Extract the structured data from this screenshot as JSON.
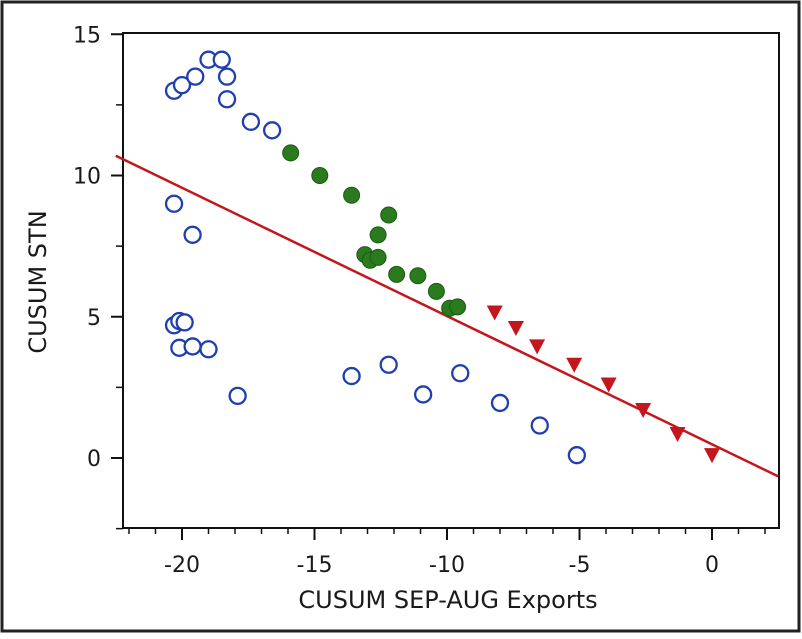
{
  "chart_data": {
    "type": "scatter",
    "title": "",
    "xlabel": "CUSUM SEP-AUG Exports",
    "ylabel": "CUSUM STN",
    "xlim": [
      -22.5,
      2.5
    ],
    "ylim": [
      -2.5,
      15
    ],
    "x_ticks": [
      -20,
      -15,
      -10,
      -5,
      0
    ],
    "y_ticks": [
      0,
      5,
      10,
      15
    ],
    "x_tick_labels": [
      "-20",
      "-15",
      "-10",
      "-5",
      "0"
    ],
    "y_tick_labels": [
      "0",
      "5",
      "10",
      "15"
    ],
    "grid": false,
    "legend": "none",
    "colors": {
      "open_circle": "#1f3fb0",
      "filled_circle": "#2a7a1e",
      "triangle": "#c4161c",
      "fit_line": "#c4161c"
    },
    "series": [
      {
        "marker": "open-circle",
        "points": [
          [
            -20.3,
            13.0
          ],
          [
            -20.0,
            13.2
          ],
          [
            -19.5,
            13.5
          ],
          [
            -19.0,
            14.1
          ],
          [
            -18.5,
            14.1
          ],
          [
            -18.3,
            13.5
          ],
          [
            -18.3,
            12.7
          ],
          [
            -17.4,
            11.9
          ],
          [
            -16.6,
            11.6
          ],
          [
            -20.3,
            9.0
          ],
          [
            -19.6,
            7.9
          ],
          [
            -20.3,
            4.7
          ],
          [
            -20.1,
            4.85
          ],
          [
            -19.9,
            4.8
          ],
          [
            -20.1,
            3.9
          ],
          [
            -19.6,
            3.95
          ],
          [
            -19.0,
            3.85
          ],
          [
            -17.9,
            2.2
          ],
          [
            -13.6,
            2.9
          ],
          [
            -12.2,
            3.3
          ],
          [
            -10.9,
            2.25
          ],
          [
            -9.5,
            3.0
          ],
          [
            -8.0,
            1.95
          ],
          [
            -6.5,
            1.15
          ],
          [
            -5.1,
            0.1
          ]
        ]
      },
      {
        "marker": "filled-circle",
        "points": [
          [
            -15.9,
            10.8
          ],
          [
            -14.8,
            10.0
          ],
          [
            -13.6,
            9.3
          ],
          [
            -12.2,
            8.6
          ],
          [
            -12.6,
            7.9
          ],
          [
            -13.1,
            7.2
          ],
          [
            -12.9,
            7.0
          ],
          [
            -12.6,
            7.1
          ],
          [
            -11.9,
            6.5
          ],
          [
            -11.1,
            6.45
          ],
          [
            -10.4,
            5.9
          ],
          [
            -9.9,
            5.3
          ],
          [
            -9.6,
            5.35
          ]
        ]
      },
      {
        "marker": "triangle",
        "points": [
          [
            -8.2,
            5.15
          ],
          [
            -7.4,
            4.6
          ],
          [
            -6.6,
            3.95
          ],
          [
            -5.2,
            3.3
          ],
          [
            -3.9,
            2.6
          ],
          [
            -2.6,
            1.7
          ],
          [
            -1.3,
            0.85
          ],
          [
            0.0,
            0.1
          ]
        ]
      }
    ],
    "fit_line": {
      "x": [
        -22.5,
        2.5
      ],
      "y": [
        10.7,
        -0.65
      ]
    }
  }
}
